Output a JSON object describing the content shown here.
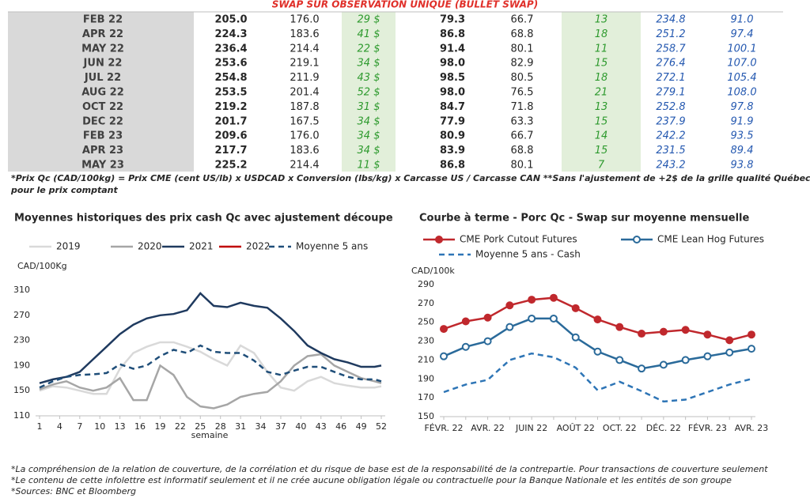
{
  "table": {
    "title": "SWAP SUR OBSERVATION UNIQUE (BULLET SWAP)",
    "rows": [
      [
        "FEB 22",
        "205.0",
        "176.0",
        "29 $",
        "79.3",
        "66.7",
        "13",
        "234.8",
        "91.0"
      ],
      [
        "APR 22",
        "224.3",
        "183.6",
        "41 $",
        "86.8",
        "68.8",
        "18",
        "251.2",
        "97.4"
      ],
      [
        "MAY 22",
        "236.4",
        "214.4",
        "22 $",
        "91.4",
        "80.1",
        "11",
        "258.7",
        "100.1"
      ],
      [
        "JUN 22",
        "253.6",
        "219.1",
        "34 $",
        "98.0",
        "82.9",
        "15",
        "276.4",
        "107.0"
      ],
      [
        "JUL 22",
        "254.8",
        "211.9",
        "43 $",
        "98.5",
        "80.5",
        "18",
        "272.1",
        "105.4"
      ],
      [
        "AUG 22",
        "253.5",
        "201.4",
        "52 $",
        "98.0",
        "76.5",
        "21",
        "279.1",
        "108.0"
      ],
      [
        "OCT 22",
        "219.2",
        "187.8",
        "31 $",
        "84.7",
        "71.8",
        "13",
        "252.8",
        "97.8"
      ],
      [
        "DEC 22",
        "201.7",
        "167.5",
        "34 $",
        "77.9",
        "63.3",
        "15",
        "237.9",
        "91.9"
      ],
      [
        "FEB 23",
        "209.6",
        "176.0",
        "34 $",
        "80.9",
        "66.7",
        "14",
        "242.2",
        "93.5"
      ],
      [
        "APR 23",
        "217.7",
        "183.6",
        "34 $",
        "83.9",
        "68.8",
        "15",
        "231.5",
        "89.4"
      ],
      [
        "MAY 23",
        "225.2",
        "214.4",
        "11 $",
        "86.8",
        "80.1",
        "7",
        "243.2",
        "93.8"
      ]
    ],
    "note": [
      "*Prix Qc (CAD/100kg) = Prix CME (cent US/lb) x USDCAD x Conversion (lbs/kg) x Carcasse US / Carcasse CAN **Sans l'ajustement de +2$ de la grille qualité Québec",
      "pour le prix comptant"
    ]
  },
  "chart_data": [
    {
      "type": "line",
      "title": "Moyennes historiques des prix cash Qc avec ajustement découpe",
      "y_label": "CAD/100Kg",
      "x_label": "semaine",
      "x": [
        1,
        3,
        5,
        7,
        9,
        11,
        13,
        15,
        17,
        19,
        21,
        23,
        25,
        27,
        29,
        31,
        33,
        35,
        37,
        39,
        41,
        43,
        45,
        47,
        49,
        51,
        52
      ],
      "xlim": [
        1,
        52
      ],
      "xticks": [
        1,
        4,
        7,
        10,
        13,
        16,
        19,
        22,
        25,
        28,
        31,
        34,
        37,
        40,
        43,
        46,
        49,
        52
      ],
      "ylim": [
        110,
        310
      ],
      "yticks": [
        110,
        150,
        190,
        230,
        270,
        310
      ],
      "series": [
        {
          "name": "2019",
          "color": "#d9d9d9",
          "style": "solid",
          "values": [
            150,
            157,
            155,
            150,
            145,
            145,
            185,
            210,
            220,
            227,
            227,
            220,
            212,
            200,
            190,
            222,
            210,
            180,
            155,
            150,
            165,
            172,
            162,
            158,
            155,
            155,
            157
          ]
        },
        {
          "name": "2020",
          "color": "#a6a6a6",
          "style": "solid",
          "values": [
            152,
            160,
            165,
            155,
            150,
            155,
            170,
            135,
            135,
            190,
            175,
            140,
            125,
            122,
            128,
            140,
            145,
            148,
            165,
            190,
            205,
            208,
            190,
            180,
            170,
            165,
            162
          ]
        },
        {
          "name": "2021",
          "color": "#1f3a5f",
          "style": "solid",
          "values": [
            162,
            168,
            172,
            180,
            200,
            220,
            240,
            255,
            265,
            270,
            272,
            278,
            305,
            285,
            283,
            290,
            285,
            282,
            265,
            245,
            222,
            210,
            200,
            195,
            188,
            188,
            190
          ]
        },
        {
          "name": "2022",
          "color": "#c00000",
          "style": "solid",
          "values": [
            null,
            null,
            null,
            null,
            null,
            null,
            null,
            null,
            null,
            null,
            null,
            null,
            null,
            null,
            null,
            null,
            null,
            null,
            null,
            null,
            null,
            null,
            null,
            null,
            null,
            null,
            null
          ]
        },
        {
          "name": "Moyenne 5 ans",
          "color": "#1f4e79",
          "style": "dashed",
          "values": [
            155,
            165,
            172,
            175,
            176,
            178,
            192,
            185,
            190,
            205,
            215,
            210,
            222,
            212,
            210,
            210,
            198,
            180,
            175,
            182,
            188,
            188,
            180,
            172,
            168,
            168,
            165
          ]
        }
      ]
    },
    {
      "type": "line",
      "title": "Courbe à terme - Porc Qc - Swap sur moyenne mensuelle",
      "y_label": "CAD/100k",
      "categories": [
        "FÉVR. 22",
        null,
        "AVR. 22",
        null,
        "JUIN 22",
        null,
        "AOÛT 22",
        null,
        "OCT. 22",
        null,
        "DÉC. 22",
        null,
        "FÉVR. 23",
        null,
        "AVR. 23"
      ],
      "ylim": [
        150,
        290
      ],
      "yticks": [
        150,
        170,
        190,
        210,
        230,
        250,
        270,
        290
      ],
      "series": [
        {
          "name": "CME Pork Cutout Futures",
          "color": "#c0282d",
          "style": "solid",
          "marker": "filled",
          "values": [
            243,
            251,
            255,
            268,
            274,
            276,
            265,
            253,
            245,
            238,
            240,
            242,
            237,
            231,
            237
          ]
        },
        {
          "name": "CME Lean Hog Futures",
          "color": "#2a6a9a",
          "style": "solid",
          "marker": "open",
          "values": [
            214,
            224,
            230,
            245,
            254,
            254,
            234,
            219,
            210,
            201,
            205,
            210,
            214,
            218,
            222
          ]
        },
        {
          "name": "Moyenne 5 ans - Cash",
          "color": "#2e75b6",
          "style": "dashed",
          "values": [
            176,
            184,
            189,
            210,
            217,
            213,
            202,
            178,
            187,
            177,
            166,
            168,
            176,
            184,
            190
          ]
        }
      ]
    }
  ],
  "footnotes": [
    "*La compréhension de la relation de couverture, de la corrélation et du risque de base est de la responsabilité de la contrepartie. Pour transactions de couverture seulement",
    "*Le contenu de cette infolettre est informatif seulement et il ne crée aucune obligation légale ou contractuelle pour la Banque Nationale et les entités de son groupe",
    "*Sources: BNC et Bloomberg"
  ]
}
